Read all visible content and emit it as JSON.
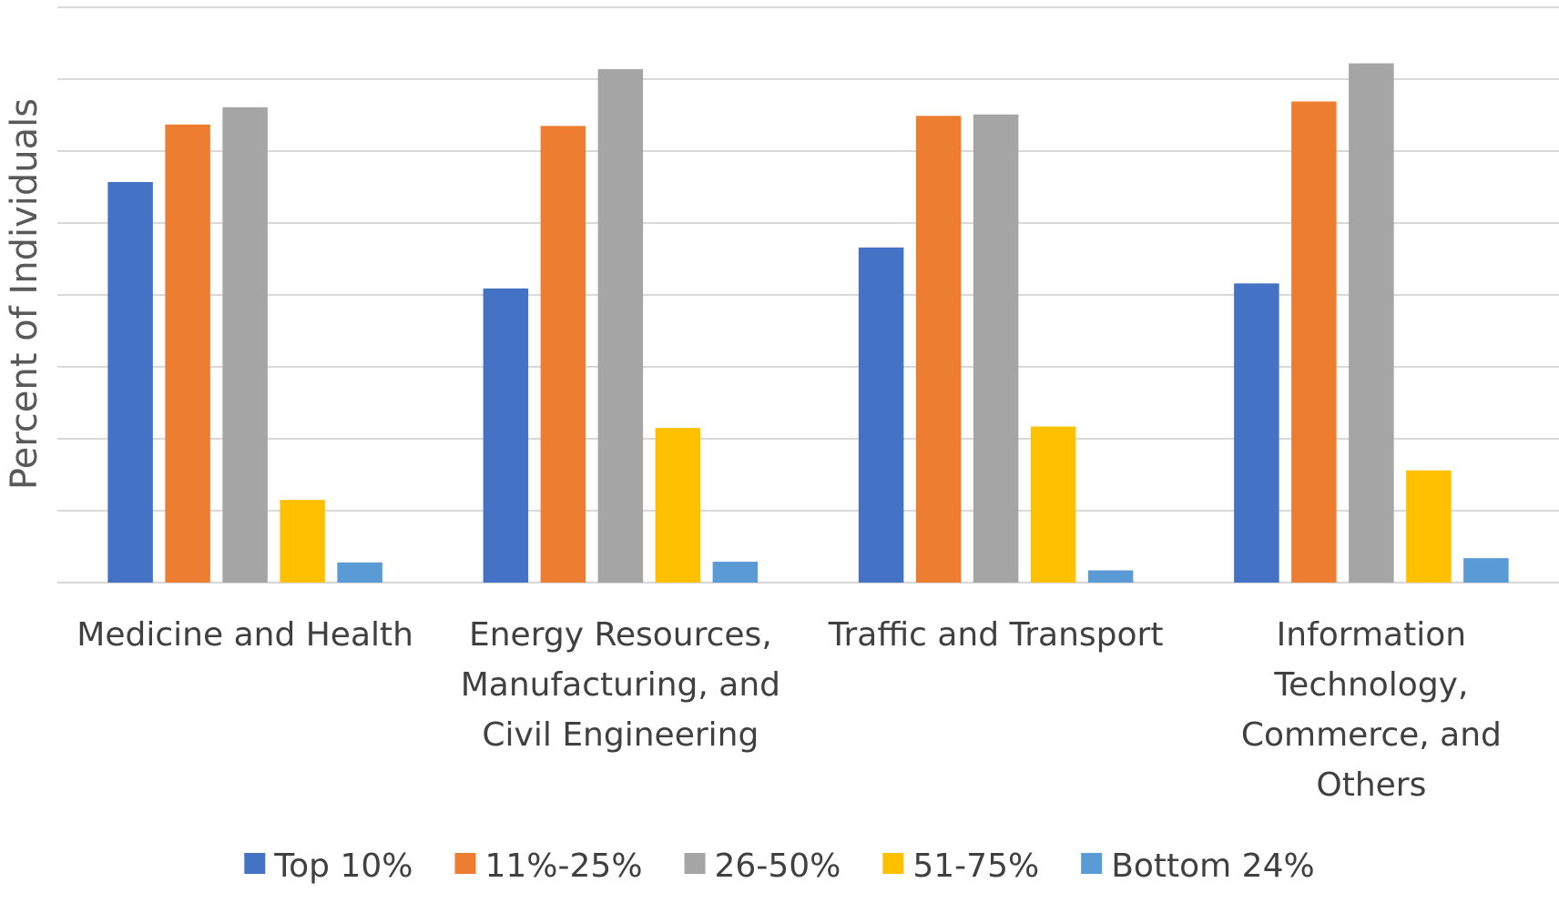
{
  "chart_data": {
    "type": "bar",
    "title": "",
    "xlabel": "",
    "ylabel": "Percent of Individuals",
    "ylim": [
      0,
      8
    ],
    "grid": true,
    "legend_position": "bottom",
    "categories": [
      [
        "Medicine and Health"
      ],
      [
        "Energy Resources,",
        "Manufacturing, and",
        "Civil Engineering"
      ],
      [
        "Traffic and Transport"
      ],
      [
        "Information",
        "Technology,",
        "Commerce, and",
        "Others"
      ]
    ],
    "series": [
      {
        "name": "Top 10%",
        "color": "#4472c4",
        "values": [
          5.57,
          4.09,
          4.66,
          4.16
        ]
      },
      {
        "name": "11%-25%",
        "color": "#ed7d31",
        "values": [
          6.37,
          6.35,
          6.49,
          6.69
        ]
      },
      {
        "name": "26-50%",
        "color": "#a5a5a5",
        "values": [
          6.61,
          7.14,
          6.51,
          7.22
        ]
      },
      {
        "name": "51-75%",
        "color": "#ffc000",
        "values": [
          1.15,
          2.15,
          2.17,
          1.56
        ]
      },
      {
        "name": "Bottom 24%",
        "color": "#5b9bd5",
        "values": [
          0.28,
          0.29,
          0.17,
          0.34
        ]
      }
    ]
  }
}
